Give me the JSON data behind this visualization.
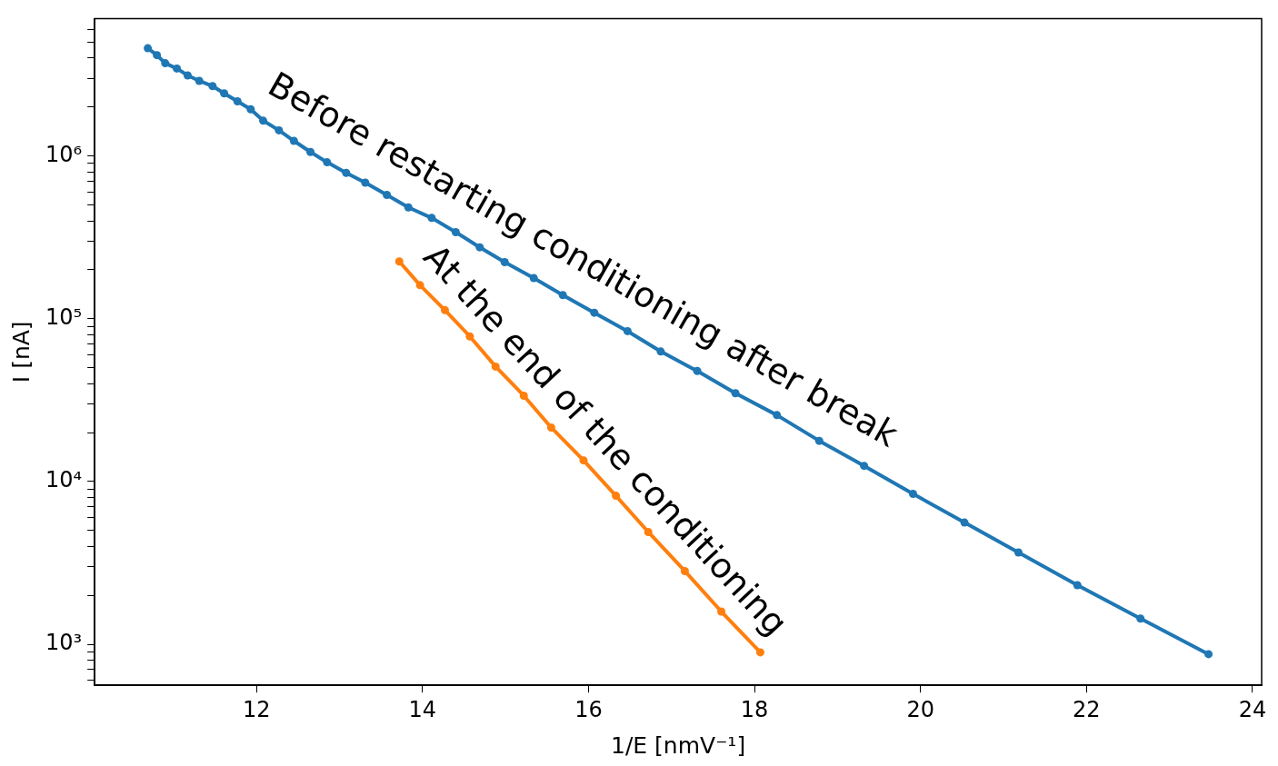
{
  "chart_data": {
    "type": "line",
    "xlabel": "1/E [nmV⁻¹]",
    "ylabel": "I [nA]",
    "log": "y",
    "grid": false,
    "legend": false,
    "marker": "circle",
    "line_style": "solid",
    "xlim": [
      10.05,
      24.11
    ],
    "ylim": [
      560,
      7000000
    ],
    "xticks": [
      12,
      14,
      16,
      18,
      20,
      22,
      24
    ],
    "yticks": [
      {
        "value": 600,
        "label": null
      },
      {
        "value": 700,
        "label": null
      },
      {
        "value": 800,
        "label": null
      },
      {
        "value": 900,
        "label": null
      },
      {
        "value": 1000,
        "label": "10³"
      },
      {
        "value": 2000,
        "label": null
      },
      {
        "value": 3000,
        "label": null
      },
      {
        "value": 4000,
        "label": null
      },
      {
        "value": 5000,
        "label": null
      },
      {
        "value": 6000,
        "label": null
      },
      {
        "value": 7000,
        "label": null
      },
      {
        "value": 8000,
        "label": null
      },
      {
        "value": 9000,
        "label": null
      },
      {
        "value": 10000,
        "label": "10⁴"
      },
      {
        "value": 20000,
        "label": null
      },
      {
        "value": 30000,
        "label": null
      },
      {
        "value": 40000,
        "label": null
      },
      {
        "value": 50000,
        "label": null
      },
      {
        "value": 60000,
        "label": null
      },
      {
        "value": 70000,
        "label": null
      },
      {
        "value": 80000,
        "label": null
      },
      {
        "value": 90000,
        "label": null
      },
      {
        "value": 100000,
        "label": "10⁵"
      },
      {
        "value": 200000,
        "label": null
      },
      {
        "value": 300000,
        "label": null
      },
      {
        "value": 400000,
        "label": null
      },
      {
        "value": 500000,
        "label": null
      },
      {
        "value": 600000,
        "label": null
      },
      {
        "value": 700000,
        "label": null
      },
      {
        "value": 800000,
        "label": null
      },
      {
        "value": 900000,
        "label": null
      },
      {
        "value": 1000000,
        "label": "10⁶"
      },
      {
        "value": 2000000,
        "label": null
      },
      {
        "value": 3000000,
        "label": null
      },
      {
        "value": 4000000,
        "label": null
      },
      {
        "value": 5000000,
        "label": null
      },
      {
        "value": 6000000,
        "label": null
      }
    ],
    "series": [
      {
        "name": "Before restarting conditioning after break",
        "color": "#1f77b4",
        "x": [
          10.69,
          10.8,
          10.9,
          11.04,
          11.17,
          11.31,
          11.47,
          11.61,
          11.77,
          11.93,
          12.08,
          12.27,
          12.45,
          12.65,
          12.85,
          13.08,
          13.31,
          13.57,
          13.83,
          14.11,
          14.4,
          14.69,
          14.99,
          15.34,
          15.69,
          16.07,
          16.47,
          16.87,
          17.31,
          17.77,
          18.27,
          18.78,
          19.32,
          19.91,
          20.53,
          21.18,
          21.89,
          22.65,
          23.47
        ],
        "values": [
          4600000,
          4170000,
          3720000,
          3450000,
          3130000,
          2900000,
          2690000,
          2430000,
          2170000,
          1940000,
          1650000,
          1440000,
          1240000,
          1060000,
          916000,
          788000,
          687000,
          577000,
          484000,
          417000,
          341000,
          275000,
          223000,
          178000,
          140000,
          109000,
          84000,
          63000,
          47800,
          34900,
          25600,
          17800,
          12500,
          8400,
          5600,
          3670,
          2310,
          1440,
          870
        ]
      },
      {
        "name": "At the end of the conditioning",
        "color": "#ff7f0e",
        "x": [
          13.72,
          13.97,
          14.27,
          14.57,
          14.88,
          15.22,
          15.55,
          15.94,
          16.33,
          16.72,
          17.16,
          17.6,
          18.07
        ],
        "values": [
          225000,
          161000,
          113000,
          78000,
          50900,
          33700,
          21500,
          13500,
          8180,
          4900,
          2820,
          1590,
          893
        ]
      }
    ]
  }
}
